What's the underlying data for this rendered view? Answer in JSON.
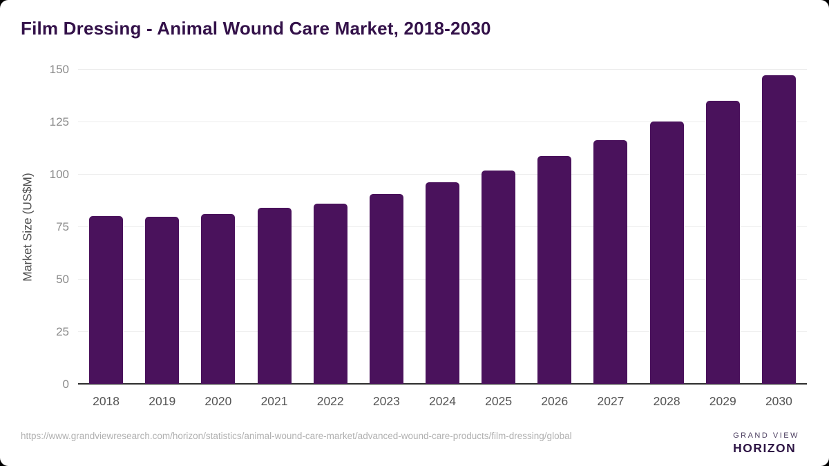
{
  "page": {
    "source_url": "https://www.grandviewresearch.com/horizon/statistics/animal-wound-care-market/advanced-wound-care-products/film-dressing/global"
  },
  "brand": {
    "name_top": "GRAND VIEW",
    "name_bottom": "HORIZON",
    "icon": "horizon-sun-icon",
    "icon_colors": {
      "purple": "#2e1a47",
      "blue": "#55c3f0",
      "white": "#ffffff"
    }
  },
  "chart_data": {
    "type": "bar",
    "title": "Film Dressing - Animal Wound Care Market, 2018-2030",
    "categories": [
      "2018",
      "2019",
      "2020",
      "2021",
      "2022",
      "2023",
      "2024",
      "2025",
      "2026",
      "2027",
      "2028",
      "2029",
      "2030"
    ],
    "values": [
      80,
      79.5,
      81,
      84,
      86,
      90.5,
      96,
      101.5,
      108.5,
      116,
      125,
      135,
      147
    ],
    "xlabel": "",
    "ylabel": "Market Size (US$M)",
    "ylim": [
      0,
      150
    ],
    "yticks": [
      0,
      25,
      50,
      75,
      100,
      125,
      150
    ],
    "grid": true,
    "legend": false,
    "bar_color": "#4a125c",
    "gridline_color": "#ececec",
    "axis_line_color": "#2d2d2d",
    "title_color": "#331149"
  }
}
